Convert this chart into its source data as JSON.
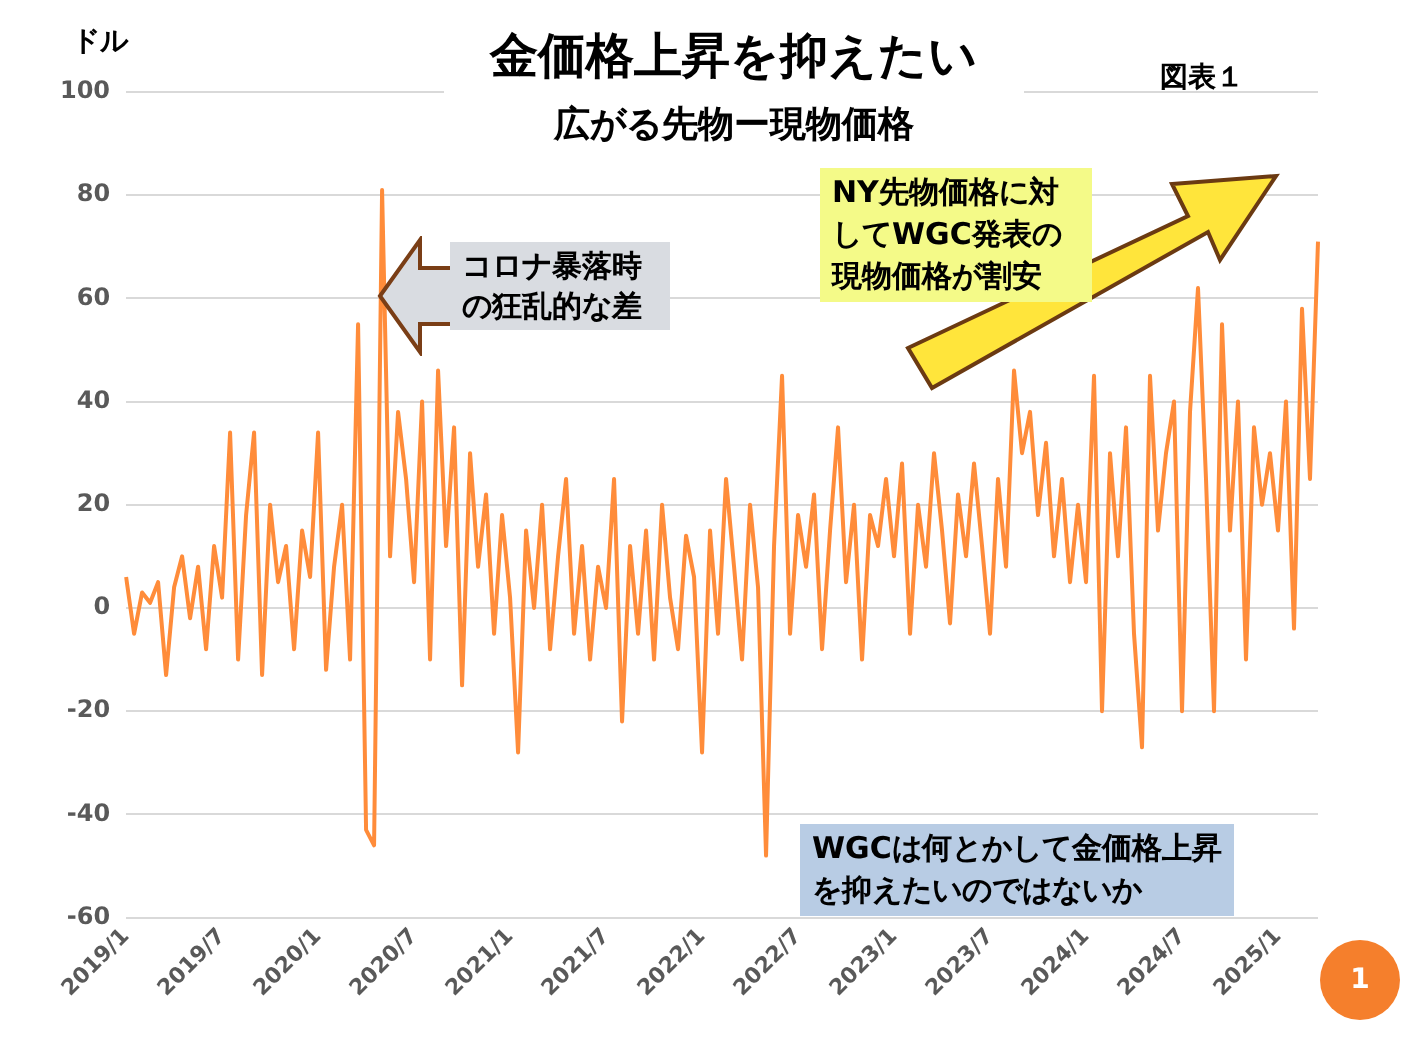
{
  "chart_data": {
    "type": "line",
    "title": "金価格上昇を抑えたい",
    "subtitle": "広がる先物ー現物価格",
    "ylabel": "ドル",
    "annotations": [
      "図表１",
      "コロナ暴落時の狂乱的な差",
      "NY先物価格に対してWGC発表の現物価格が割安",
      "WGCは何とかして金価格上昇を抑えたいのではないか",
      "1"
    ],
    "categories": [
      "2019/1",
      null,
      null,
      null,
      null,
      null,
      null,
      null,
      null,
      null,
      null,
      null,
      "2019/7",
      null,
      null,
      null,
      null,
      null,
      null,
      null,
      null,
      null,
      null,
      null,
      "2020/1",
      null,
      null,
      null,
      null,
      null,
      null,
      null,
      null,
      null,
      null,
      null,
      "2020/7",
      null,
      null,
      null,
      null,
      null,
      null,
      null,
      null,
      null,
      null,
      null,
      "2021/1",
      null,
      null,
      null,
      null,
      null,
      null,
      null,
      null,
      null,
      null,
      null,
      "2021/7",
      null,
      null,
      null,
      null,
      null,
      null,
      null,
      null,
      null,
      null,
      null,
      "2022/1",
      null,
      null,
      null,
      null,
      null,
      null,
      null,
      null,
      null,
      null,
      null,
      "2022/7",
      null,
      null,
      null,
      null,
      null,
      null,
      null,
      null,
      null,
      null,
      null,
      "2023/1",
      null,
      null,
      null,
      null,
      null,
      null,
      null,
      null,
      null,
      null,
      null,
      "2023/7",
      null,
      null,
      null,
      null,
      null,
      null,
      null,
      null,
      null,
      null,
      null,
      "2024/1",
      null,
      null,
      null,
      null,
      null,
      null,
      null,
      null,
      null,
      null,
      null,
      "2024/7",
      null,
      null,
      null,
      null,
      null,
      null,
      null,
      null,
      null,
      null,
      null,
      "2025/1",
      null,
      null,
      null,
      null,
      null
    ],
    "series": [
      {
        "color": "#ff8c3a",
        "values": [
          6,
          -5,
          3,
          1,
          5,
          -13,
          4,
          10,
          -2,
          8,
          -8,
          12,
          2,
          34,
          -10,
          18,
          34,
          -13,
          20,
          5,
          12,
          -8,
          15,
          6,
          34,
          -12,
          8,
          20,
          -10,
          55,
          -43,
          -46,
          81,
          10,
          38,
          25,
          5,
          40,
          -10,
          46,
          12,
          35,
          -15,
          30,
          8,
          22,
          -5,
          18,
          2,
          -28,
          15,
          0,
          20,
          -8,
          10,
          25,
          -5,
          12,
          -10,
          8,
          0,
          25,
          -22,
          12,
          -5,
          15,
          -10,
          20,
          2,
          -8,
          14,
          6,
          -28,
          15,
          -5,
          25,
          8,
          -10,
          20,
          4,
          -48,
          12,
          45,
          -5,
          18,
          8,
          22,
          -8,
          15,
          35,
          5,
          20,
          -10,
          18,
          12,
          25,
          10,
          28,
          -5,
          20,
          8,
          30,
          15,
          -3,
          22,
          10,
          28,
          12,
          -5,
          25,
          8,
          46,
          30,
          38,
          18,
          32,
          10,
          25,
          5,
          20,
          5,
          45,
          -20,
          30,
          10,
          35,
          -5,
          -27,
          45,
          15,
          30,
          40,
          -20,
          38,
          62,
          25,
          -20,
          55,
          15,
          40,
          -10,
          35,
          20,
          30,
          15,
          40,
          -4,
          58,
          25,
          71
        ]
      }
    ],
    "ylim": [
      -60,
      100
    ],
    "yticks": [
      -60,
      -40,
      -20,
      0,
      20,
      40,
      60,
      80,
      100
    ],
    "grid": "y",
    "legend": false,
    "marker": "none",
    "line_style": "solid"
  }
}
